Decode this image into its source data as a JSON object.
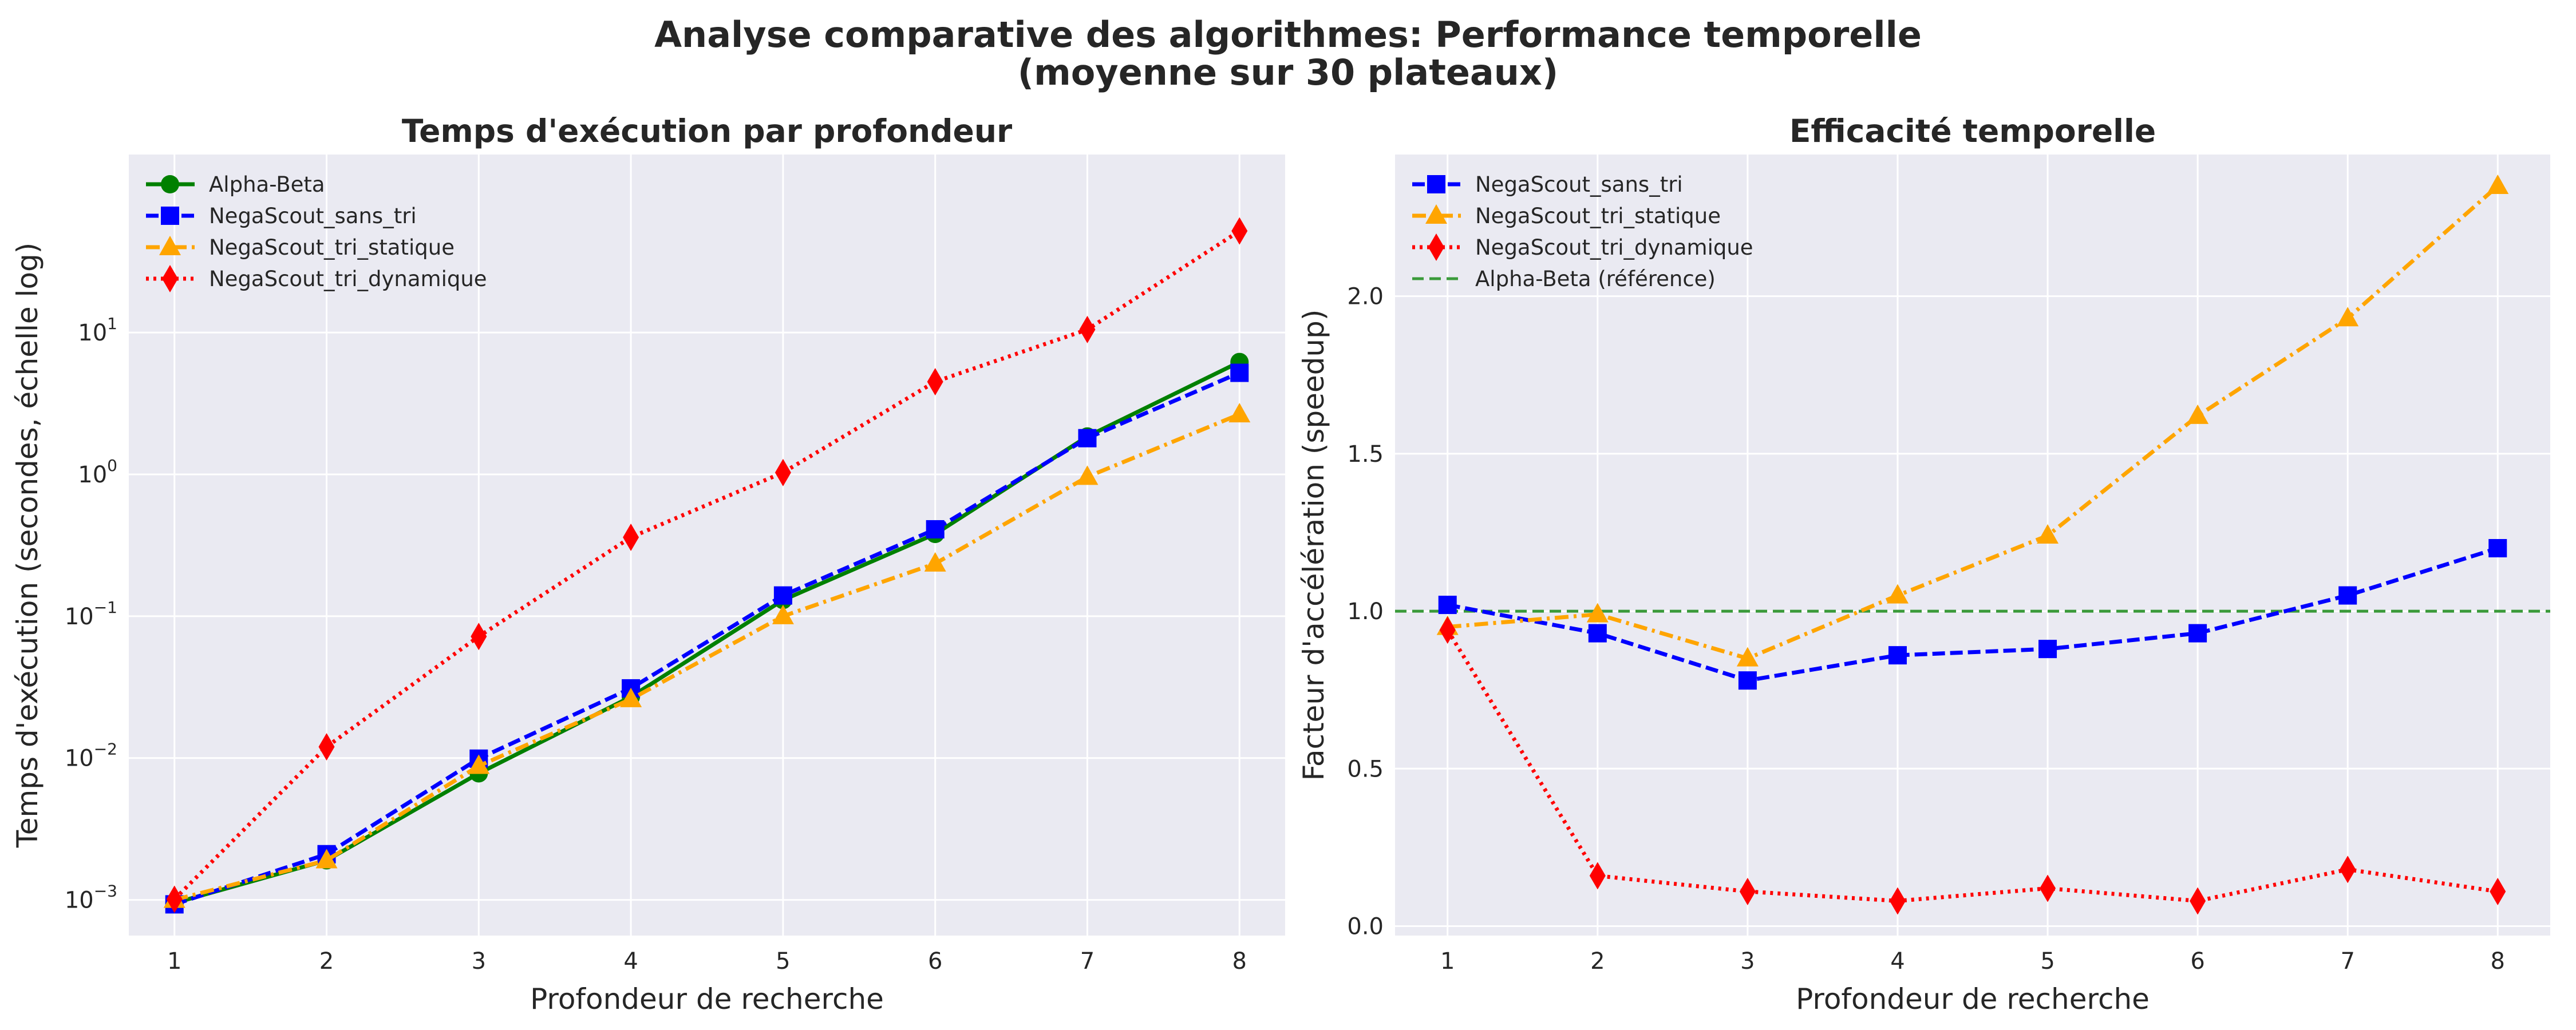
{
  "figure": {
    "title_line1": "Analyse comparative des algorithmes: Performance temporelle",
    "title_line2": "(moyenne sur 30 plateaux)"
  },
  "chart_data": [
    {
      "type": "line",
      "title": "Temps d'exécution par profondeur",
      "xlabel": "Profondeur de recherche",
      "ylabel": "Temps d'exécution (secondes, échelle log)",
      "yscale": "log",
      "x": [
        1,
        2,
        3,
        4,
        5,
        6,
        7,
        8
      ],
      "xlim": [
        0.7,
        8.3
      ],
      "ylim": [
        0.00056,
        180
      ],
      "y_ticks": [
        0.001,
        0.01,
        0.1,
        1,
        10
      ],
      "y_tick_labels": [
        [
          "10",
          "−3"
        ],
        [
          "10",
          "−2"
        ],
        [
          "10",
          "−1"
        ],
        [
          "10",
          "0"
        ],
        [
          "10",
          "1"
        ]
      ],
      "grid": true,
      "legend_position": "upper left",
      "series": [
        {
          "name": "Alpha-Beta",
          "color": "#008000",
          "marker": "circle",
          "dash": "solid",
          "values": [
            0.00095,
            0.0019,
            0.0078,
            0.027,
            0.13,
            0.38,
            1.85,
            6.2
          ]
        },
        {
          "name": "NegaScout_sans_tri",
          "color": "#0000ff",
          "marker": "square",
          "dash": "dashed",
          "values": [
            0.00093,
            0.0021,
            0.0099,
            0.031,
            0.14,
            0.41,
            1.8,
            5.2
          ]
        },
        {
          "name": "NegaScout_tri_statique",
          "color": "#ffa500",
          "marker": "triangle",
          "dash": "dashdot",
          "values": [
            0.001,
            0.0019,
            0.0088,
            0.026,
            0.1,
            0.235,
            0.96,
            2.65
          ]
        },
        {
          "name": "NegaScout_tri_dynamique",
          "color": "#ff0000",
          "marker": "diamond",
          "dash": "dotted",
          "values": [
            0.00101,
            0.012,
            0.072,
            0.36,
            1.03,
            4.5,
            10.5,
            52
          ]
        }
      ]
    },
    {
      "type": "line",
      "title": "Efficacité temporelle",
      "xlabel": "Profondeur de recherche",
      "ylabel": "Facteur d'accélération (speedup)",
      "yscale": "linear",
      "x": [
        1,
        2,
        3,
        4,
        5,
        6,
        7,
        8
      ],
      "xlim": [
        0.65,
        8.35
      ],
      "ylim": [
        -0.03,
        2.45
      ],
      "y_ticks": [
        0.0,
        0.5,
        1.0,
        1.5,
        2.0
      ],
      "y_tick_labels": [
        "0.0",
        "0.5",
        "1.0",
        "1.5",
        "2.0"
      ],
      "grid": true,
      "legend_position": "upper left",
      "reference_line": {
        "name": "Alpha-Beta (référence)",
        "y": 1.0,
        "color": "#3a9a3a"
      },
      "series": [
        {
          "name": "NegaScout_sans_tri",
          "color": "#0000ff",
          "marker": "square",
          "dash": "dashed",
          "values": [
            1.02,
            0.93,
            0.78,
            0.86,
            0.88,
            0.93,
            1.05,
            1.2
          ]
        },
        {
          "name": "NegaScout_tri_statique",
          "color": "#ffa500",
          "marker": "triangle",
          "dash": "dashdot",
          "values": [
            0.95,
            0.99,
            0.85,
            1.05,
            1.24,
            1.62,
            1.93,
            2.35
          ]
        },
        {
          "name": "NegaScout_tri_dynamique",
          "color": "#ff0000",
          "marker": "diamond",
          "dash": "dotted",
          "values": [
            0.94,
            0.16,
            0.11,
            0.08,
            0.12,
            0.08,
            0.18,
            0.11
          ]
        }
      ]
    }
  ]
}
